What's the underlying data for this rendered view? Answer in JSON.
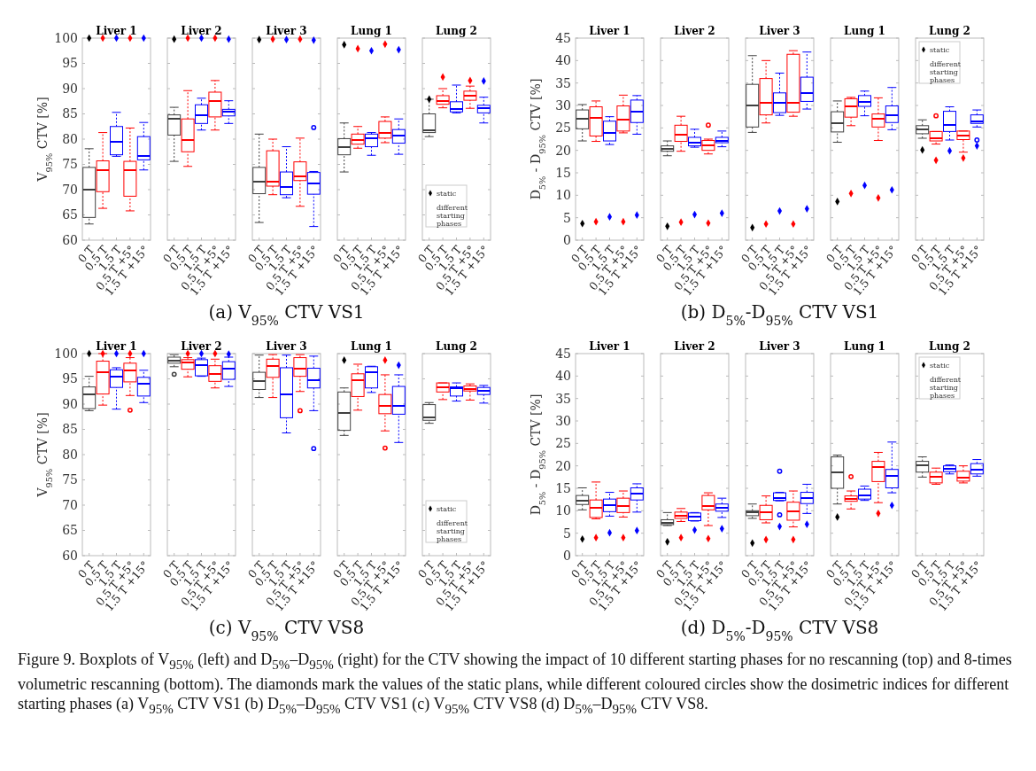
{
  "chart_data": [
    {
      "type": "box",
      "title": "Liver 1",
      "ylabel": "V$_{95%}$ CTV [%]",
      "annotations": [
        "(a) V$_{95%}$ CTV VS1"
      ],
      "categories": [
        "0 T",
        "0.5 T",
        "1.5 T",
        "0.5 T +5°",
        "1.5 T +15°"
      ],
      "ylim": [
        60,
        100
      ],
      "yticks": [
        60,
        65,
        70,
        75,
        80,
        85,
        90,
        95,
        100
      ],
      "series": [
        {
          "type": "box",
          "colors": [
            "#404040",
            "#ff0000",
            "#0000ff",
            "#ff0000",
            "#0000ff"
          ],
          "boxes": [
            {
              "low": 63.2,
              "q1": 64.5,
              "median": 70,
              "q3": 74.4,
              "high": 78.1
            },
            {
              "low": 66.3,
              "q1": 69.6,
              "median": 73.9,
              "q3": 75.7,
              "high": 81.3
            },
            {
              "low": 76.6,
              "q1": 76.9,
              "median": 79.4,
              "q3": 82.5,
              "high": 85.3
            },
            {
              "low": 65.8,
              "q1": 68.7,
              "median": 73.8,
              "q3": 75.6,
              "high": 82.2
            },
            {
              "low": 73.9,
              "q1": 75.9,
              "median": 76.7,
              "q3": 80.5,
              "high": 83.3
            }
          ]
        },
        {
          "type": "scatter",
          "marker": "diamond",
          "colors": [
            "#000000",
            "#ff0000",
            "#0000ff",
            "#ff0000",
            "#0000ff"
          ],
          "values": [
            100,
            100,
            100,
            100,
            100
          ]
        }
      ]
    },
    {
      "type": "box",
      "title": "Liver 2",
      "tick_labels": "x",
      "categories": [
        "0 T",
        "0.5 T",
        "1.5 T",
        "0.5 T +5°",
        "1.5 T +15°"
      ],
      "ylim": [
        60,
        100
      ],
      "yticks": [
        60,
        65,
        70,
        75,
        80,
        85,
        90,
        95,
        100
      ],
      "series": [
        {
          "type": "box",
          "colors": [
            "#404040",
            "#ff0000",
            "#0000ff",
            "#ff0000",
            "#0000ff"
          ],
          "boxes": [
            {
              "low": 75.6,
              "q1": 80.8,
              "median": 84,
              "q3": 84.8,
              "high": 86.3
            },
            {
              "low": 74.6,
              "q1": 77.5,
              "median": 79.8,
              "q3": 84,
              "high": 89.6
            },
            {
              "low": 81.8,
              "q1": 83.1,
              "median": 84.7,
              "q3": 86.8,
              "high": 88.1
            },
            {
              "low": 81.8,
              "q1": 84.4,
              "median": 87.5,
              "q3": 89.3,
              "high": 91.6
            },
            {
              "low": 83.1,
              "q1": 84.6,
              "median": 85.4,
              "q3": 85.9,
              "high": 87.6
            }
          ]
        },
        {
          "type": "scatter",
          "marker": "diamond",
          "colors": [
            "#000000",
            "#ff0000",
            "#0000ff",
            "#ff0000",
            "#0000ff"
          ],
          "values": [
            99.8,
            100,
            100,
            100,
            99.8
          ]
        }
      ]
    },
    {
      "type": "box",
      "title": "Liver 3",
      "tick_labels": "x",
      "categories": [
        "0 T",
        "0.5 T",
        "1.5 T",
        "0.5 T +5°",
        "1.5 T +15°"
      ],
      "ylim": [
        60,
        100
      ],
      "yticks": [
        60,
        65,
        70,
        75,
        80,
        85,
        90,
        95,
        100
      ],
      "series": [
        {
          "type": "box",
          "colors": [
            "#404040",
            "#ff0000",
            "#0000ff",
            "#ff0000",
            "#0000ff"
          ],
          "boxes": [
            {
              "low": 63.5,
              "q1": 69.2,
              "median": 71.5,
              "q3": 74.4,
              "high": 81
            },
            {
              "low": 69,
              "q1": 70.7,
              "median": 71.6,
              "q3": 77.7,
              "high": 80
            },
            {
              "low": 68.4,
              "q1": 69,
              "median": 70.5,
              "q3": 73.5,
              "high": 78.5
            },
            {
              "low": 66.7,
              "q1": 71.8,
              "median": 72.7,
              "q3": 75.5,
              "high": 80.2
            },
            {
              "low": 62.7,
              "q1": 69.1,
              "median": 71.3,
              "q3": 73.4,
              "high": 73.6,
              "outliers": [
                82.3
              ]
            }
          ]
        },
        {
          "type": "scatter",
          "marker": "diamond",
          "colors": [
            "#000000",
            "#ff0000",
            "#0000ff",
            "#ff0000",
            "#0000ff"
          ],
          "values": [
            99.7,
            99.8,
            99.7,
            99.8,
            99.6
          ]
        }
      ]
    },
    {
      "type": "box",
      "title": "Lung 1",
      "tick_labels": "x",
      "categories": [
        "0 T",
        "0.5 T",
        "1.5 T",
        "0.5 T +5°",
        "1.5 T +15°"
      ],
      "ylim": [
        60,
        100
      ],
      "yticks": [
        60,
        65,
        70,
        75,
        80,
        85,
        90,
        95,
        100
      ],
      "series": [
        {
          "type": "box",
          "colors": [
            "#404040",
            "#ff0000",
            "#0000ff",
            "#ff0000",
            "#0000ff"
          ],
          "boxes": [
            {
              "low": 73.5,
              "q1": 76.9,
              "median": 78.4,
              "q3": 80.1,
              "high": 83.2
            },
            {
              "low": 78.2,
              "q1": 79,
              "median": 79.9,
              "q3": 81,
              "high": 82.5
            },
            {
              "low": 76.8,
              "q1": 78.5,
              "median": 80.1,
              "q3": 81,
              "high": 81.3
            },
            {
              "low": 79.3,
              "q1": 80.2,
              "median": 81.2,
              "q3": 83.5,
              "high": 84.4
            },
            {
              "low": 77,
              "q1": 79.2,
              "median": 80.7,
              "q3": 81.9,
              "high": 84
            }
          ]
        },
        {
          "type": "scatter",
          "marker": "diamond",
          "colors": [
            "#000000",
            "#ff0000",
            "#0000ff",
            "#ff0000",
            "#0000ff"
          ],
          "values": [
            98.7,
            97.9,
            97.5,
            98.8,
            97.7
          ]
        }
      ]
    },
    {
      "type": "box",
      "title": "Lung 2",
      "tick_labels": "x",
      "legend": "bottom left",
      "legend_title": "different starting phases",
      "categories": [
        "0 T",
        "0.5 T",
        "1.5 T",
        "0.5 T +5°",
        "1.5 T +15°"
      ],
      "ylim": [
        60,
        100
      ],
      "yticks": [
        60,
        65,
        70,
        75,
        80,
        85,
        90,
        95,
        100
      ],
      "series": [
        {
          "type": "box",
          "colors": [
            "#404040",
            "#ff0000",
            "#0000ff",
            "#ff0000",
            "#0000ff"
          ],
          "boxes": [
            {
              "low": 80.5,
              "q1": 81.3,
              "median": 81.8,
              "q3": 85,
              "high": 87.9
            },
            {
              "low": 86.2,
              "q1": 86.9,
              "median": 87.6,
              "q3": 88.6,
              "high": 90
            },
            {
              "low": 85.2,
              "q1": 85.4,
              "median": 86,
              "q3": 87.4,
              "high": 90.7
            },
            {
              "low": 86.1,
              "q1": 87.7,
              "median": 88.6,
              "q3": 89.5,
              "high": 90.5
            },
            {
              "low": 83.2,
              "q1": 85.2,
              "median": 86.1,
              "q3": 86.7,
              "high": 88.3
            }
          ]
        },
        {
          "type": "scatter",
          "name": "static",
          "marker": "diamond",
          "color": "#000000",
          "colors": [
            "#000000",
            "#ff0000",
            null,
            "#ff0000",
            "#0000ff"
          ],
          "values": [
            87.9,
            92.3,
            null,
            91.6,
            91.5
          ]
        }
      ]
    },
    {
      "type": "box",
      "title": "Liver 1",
      "ylabel": "D$_{5%}$ - D$_{95%}$ CTV [%]",
      "annotations": [
        "(b) D$_{5%}$-D$_{95%}$ CTV VS1"
      ],
      "categories": [
        "0 T",
        "0.5 T",
        "1.5 T",
        "0.5 T +5°",
        "1.5 T +15°"
      ],
      "ylim": [
        0,
        45
      ],
      "yticks": [
        0,
        5,
        10,
        15,
        20,
        25,
        30,
        35,
        40,
        45
      ],
      "series": [
        {
          "type": "box",
          "colors": [
            "#404040",
            "#ff0000",
            "#0000ff",
            "#ff0000",
            "#0000ff"
          ],
          "boxes": [
            {
              "low": 22.1,
              "q1": 24.8,
              "median": 27,
              "q3": 29,
              "high": 30.2
            },
            {
              "low": 22,
              "q1": 23.2,
              "median": 27.2,
              "q3": 29.7,
              "high": 31
            },
            {
              "low": 21.3,
              "q1": 22.1,
              "median": 23.8,
              "q3": 26.5,
              "high": 27.5
            },
            {
              "low": 23.9,
              "q1": 24.3,
              "median": 26.8,
              "q3": 29.9,
              "high": 32.3
            },
            {
              "low": 23.6,
              "q1": 26.2,
              "median": 28.7,
              "q3": 31.2,
              "high": 32.2
            }
          ]
        },
        {
          "type": "scatter",
          "marker": "diamond",
          "colors": [
            "#000000",
            "#ff0000",
            "#0000ff",
            "#ff0000",
            "#0000ff"
          ],
          "values": [
            3.7,
            4.1,
            5.2,
            4.1,
            5.6
          ]
        }
      ]
    },
    {
      "type": "box",
      "title": "Liver 2",
      "tick_labels": "x",
      "categories": [
        "0 T",
        "0.5 T",
        "1.5 T",
        "0.5 T +5°",
        "1.5 T +15°"
      ],
      "ylim": [
        0,
        45
      ],
      "yticks": [
        0,
        5,
        10,
        15,
        20,
        25,
        30,
        35,
        40,
        45
      ],
      "series": [
        {
          "type": "box",
          "colors": [
            "#404040",
            "#ff0000",
            "#0000ff",
            "#ff0000",
            "#0000ff"
          ],
          "boxes": [
            {
              "low": 18.8,
              "q1": 19.8,
              "median": 20.4,
              "q3": 21,
              "high": 22.1
            },
            {
              "low": 19.8,
              "q1": 22,
              "median": 23.5,
              "q3": 25.6,
              "high": 27.6
            },
            {
              "low": 20.7,
              "q1": 21,
              "median": 21.7,
              "q3": 22.9,
              "high": 24.7
            },
            {
              "low": 19.2,
              "q1": 20,
              "median": 21.2,
              "q3": 22.2,
              "high": 22.5,
              "outliers": [
                25.6
              ]
            },
            {
              "low": 20.8,
              "q1": 21.7,
              "median": 22.2,
              "q3": 22.9,
              "high": 24.3
            }
          ]
        },
        {
          "type": "scatter",
          "marker": "diamond",
          "colors": [
            "#000000",
            "#ff0000",
            "#0000ff",
            "#ff0000",
            "#0000ff"
          ],
          "values": [
            3.1,
            4,
            5.7,
            3.8,
            6
          ]
        }
      ]
    },
    {
      "type": "box",
      "title": "Liver 3",
      "tick_labels": "x",
      "categories": [
        "0 T",
        "0.5 T",
        "1.5 T",
        "0.5 T +5°",
        "1.5 T +15°"
      ],
      "ylim": [
        0,
        45
      ],
      "yticks": [
        0,
        5,
        10,
        15,
        20,
        25,
        30,
        35,
        40,
        45
      ],
      "series": [
        {
          "type": "box",
          "colors": [
            "#404040",
            "#ff0000",
            "#0000ff",
            "#ff0000",
            "#0000ff"
          ],
          "boxes": [
            {
              "low": 24,
              "q1": 25.2,
              "median": 30,
              "q3": 34.7,
              "high": 41.1
            },
            {
              "low": 26.1,
              "q1": 27.9,
              "median": 30.5,
              "q3": 36,
              "high": 40
            },
            {
              "low": 27.8,
              "q1": 28.4,
              "median": 30.5,
              "q3": 32.8,
              "high": 37.2
            },
            {
              "low": 27.6,
              "q1": 28.5,
              "median": 30.5,
              "q3": 41.4,
              "high": 42.2
            },
            {
              "low": 29.2,
              "q1": 30.9,
              "median": 32.7,
              "q3": 36.3,
              "high": 41.9
            }
          ]
        },
        {
          "type": "scatter",
          "marker": "diamond",
          "colors": [
            "#000000",
            "#ff0000",
            "#0000ff",
            "#ff0000",
            "#0000ff"
          ],
          "values": [
            2.8,
            3.6,
            6.5,
            3.6,
            7
          ]
        }
      ]
    },
    {
      "type": "box",
      "title": "Lung 1",
      "tick_labels": "x",
      "categories": [
        "0 T",
        "0.5 T",
        "1.5 T",
        "0.5 T +5°",
        "1.5 T +15°"
      ],
      "ylim": [
        0,
        45
      ],
      "yticks": [
        0,
        5,
        10,
        15,
        20,
        25,
        30,
        35,
        40,
        45
      ],
      "series": [
        {
          "type": "box",
          "colors": [
            "#404040",
            "#ff0000",
            "#0000ff",
            "#ff0000",
            "#0000ff"
          ],
          "boxes": [
            {
              "low": 21.8,
              "q1": 24.1,
              "median": 26.1,
              "q3": 28.6,
              "high": 31
            },
            {
              "low": 25.5,
              "q1": 27.4,
              "median": 29.8,
              "q3": 31.5,
              "high": 31.8
            },
            {
              "low": 27.7,
              "q1": 29.8,
              "median": 30.7,
              "q3": 32.2,
              "high": 33.2
            },
            {
              "low": 22.2,
              "q1": 25.2,
              "median": 27,
              "q3": 28.1,
              "high": 31.7
            },
            {
              "low": 24.6,
              "q1": 26.2,
              "median": 27.8,
              "q3": 29.9,
              "high": 34
            }
          ]
        },
        {
          "type": "scatter",
          "marker": "diamond",
          "colors": [
            "#000000",
            "#ff0000",
            "#0000ff",
            "#ff0000",
            "#0000ff"
          ],
          "values": [
            8.6,
            10.4,
            12.2,
            9.4,
            11.2
          ]
        }
      ]
    },
    {
      "type": "box",
      "title": "Lung 2",
      "tick_labels": "x",
      "legend": "top left",
      "legend_title": "different starting phases",
      "categories": [
        "0 T",
        "0.5 T",
        "1.5 T",
        "0.5 T +5°",
        "1.5 T +15°"
      ],
      "ylim": [
        0,
        45
      ],
      "yticks": [
        0,
        5,
        10,
        15,
        20,
        25,
        30,
        35,
        40,
        45
      ],
      "series": [
        {
          "type": "box",
          "colors": [
            "#404040",
            "#ff0000",
            "#0000ff",
            "#ff0000",
            "#0000ff"
          ],
          "boxes": [
            {
              "low": 22.7,
              "q1": 23.7,
              "median": 24.6,
              "q3": 25.5,
              "high": 26.8
            },
            {
              "low": 21.4,
              "q1": 22.1,
              "median": 22.7,
              "q3": 24.2,
              "high": 24.2,
              "outliers": [
                27.7
              ]
            },
            {
              "low": 22.3,
              "q1": 24.2,
              "median": 25.6,
              "q3": 28.7,
              "high": 29.7
            },
            {
              "low": 19.6,
              "q1": 22.4,
              "median": 23.3,
              "q3": 24.3,
              "high": 24.3
            },
            {
              "low": 25.2,
              "q1": 26,
              "median": 26.4,
              "q3": 27.9,
              "high": 29,
              "outliers": [
                22.3
              ]
            }
          ]
        },
        {
          "type": "scatter",
          "name": "static",
          "marker": "diamond",
          "color": "#000000",
          "colors": [
            "#000000",
            "#ff0000",
            "#0000ff",
            "#ff0000",
            "#0000ff"
          ],
          "values": [
            20.1,
            17.8,
            19.9,
            18.3,
            21
          ]
        }
      ]
    },
    {
      "type": "box",
      "title": "Liver 1",
      "ylabel": "V$_{95%}$ CTV [%]",
      "annotations": [
        "(c) V$_{95%}$ CTV VS8"
      ],
      "categories": [
        "0 T",
        "0.5 T",
        "1.5 T",
        "0.5 T +5°",
        "1.5 T +15°"
      ],
      "ylim": [
        60,
        100
      ],
      "yticks": [
        60,
        65,
        70,
        75,
        80,
        85,
        90,
        95,
        100
      ],
      "series": [
        {
          "type": "box",
          "colors": [
            "#404040",
            "#ff0000",
            "#0000ff",
            "#ff0000",
            "#0000ff"
          ],
          "boxes": [
            {
              "low": 88.7,
              "q1": 89.1,
              "median": 91.9,
              "q3": 93.4,
              "high": 95.5
            },
            {
              "low": 89.8,
              "q1": 92,
              "median": 96.3,
              "q3": 98.5,
              "high": 100
            },
            {
              "low": 89,
              "q1": 93.3,
              "median": 95.5,
              "q3": 96.8,
              "high": 97.2
            },
            {
              "low": 91.7,
              "q1": 94.4,
              "median": 96.6,
              "q3": 98.1,
              "high": 99.2,
              "outliers": [
                88.8
              ]
            },
            {
              "low": 90.3,
              "q1": 91.6,
              "median": 94,
              "q3": 95.3,
              "high": 96.7
            }
          ]
        },
        {
          "type": "scatter",
          "marker": "diamond",
          "colors": [
            "#000000",
            "#ff0000",
            "#0000ff",
            "#ff0000",
            "#0000ff"
          ],
          "values": [
            100,
            100,
            100,
            100,
            100
          ]
        }
      ]
    },
    {
      "type": "box",
      "title": "Liver 2",
      "tick_labels": "x",
      "categories": [
        "0 T",
        "0.5 T",
        "1.5 T",
        "0.5 T +5°",
        "1.5 T +15°"
      ],
      "ylim": [
        60,
        100
      ],
      "yticks": [
        60,
        65,
        70,
        75,
        80,
        85,
        90,
        95,
        100
      ],
      "series": [
        {
          "type": "box",
          "colors": [
            "#404040",
            "#ff0000",
            "#0000ff",
            "#ff0000",
            "#0000ff"
          ],
          "boxes": [
            {
              "low": 97.4,
              "q1": 98.1,
              "median": 98.6,
              "q3": 99.3,
              "high": 99.8,
              "outliers": [
                95.9
              ]
            },
            {
              "low": 95.4,
              "q1": 96.9,
              "median": 98.3,
              "q3": 98.8,
              "high": 99.2
            },
            {
              "low": 95.5,
              "q1": 95.6,
              "median": 97.8,
              "q3": 98.8,
              "high": 99.1
            },
            {
              "low": 93.2,
              "q1": 94.5,
              "median": 96,
              "q3": 97.6,
              "high": 98.9
            },
            {
              "low": 93.5,
              "q1": 94.9,
              "median": 97,
              "q3": 98.4,
              "high": 99.3
            }
          ]
        },
        {
          "type": "scatter",
          "marker": "diamond",
          "colors": [
            null,
            "#ff0000",
            "#0000ff",
            "#ff0000",
            "#0000ff"
          ],
          "values": [
            null,
            100,
            100,
            100,
            99.9
          ]
        }
      ]
    },
    {
      "type": "box",
      "title": "Liver 3",
      "tick_labels": "x",
      "categories": [
        "0 T",
        "0.5 T",
        "1.5 T",
        "0.5 T +5°",
        "1.5 T +15°"
      ],
      "ylim": [
        60,
        100
      ],
      "yticks": [
        60,
        65,
        70,
        75,
        80,
        85,
        90,
        95,
        100
      ],
      "series": [
        {
          "type": "box",
          "colors": [
            "#404040",
            "#ff0000",
            "#0000ff",
            "#ff0000",
            "#0000ff"
          ],
          "boxes": [
            {
              "low": 91.3,
              "q1": 92.9,
              "median": 94.5,
              "q3": 96.3,
              "high": 99.7
            },
            {
              "low": 91.3,
              "q1": 95.3,
              "median": 97.5,
              "q3": 98.9,
              "high": 99.8
            },
            {
              "low": 84.3,
              "q1": 87.3,
              "median": 92,
              "q3": 97.2,
              "high": 99.7
            },
            {
              "low": 92.5,
              "q1": 95.5,
              "median": 97,
              "q3": 99.2,
              "high": 99.8,
              "outliers": [
                88.7
              ]
            },
            {
              "low": 88.7,
              "q1": 93.2,
              "median": 94.7,
              "q3": 97.1,
              "high": 99.5,
              "outliers": [
                81.2
              ]
            }
          ]
        }
      ]
    },
    {
      "type": "box",
      "title": "Lung 1",
      "tick_labels": "x",
      "categories": [
        "0 T",
        "0.5 T",
        "1.5 T",
        "0.5 T +5°",
        "1.5 T +15°"
      ],
      "ylim": [
        60,
        100
      ],
      "yticks": [
        60,
        65,
        70,
        75,
        80,
        85,
        90,
        95,
        100
      ],
      "series": [
        {
          "type": "box",
          "colors": [
            "#404040",
            "#ff0000",
            "#0000ff",
            "#ff0000",
            "#0000ff"
          ],
          "boxes": [
            {
              "low": 83.8,
              "q1": 84.8,
              "median": 88.2,
              "q3": 92.4,
              "high": 93.2
            },
            {
              "low": 88.8,
              "q1": 91.5,
              "median": 94.8,
              "q3": 96,
              "high": 97.9
            },
            {
              "low": 92.3,
              "q1": 93.2,
              "median": 96.3,
              "q3": 97.4,
              "high": 97.5
            },
            {
              "low": 84.7,
              "q1": 88.1,
              "median": 89.6,
              "q3": 91.9,
              "high": 95.8,
              "outliers": [
                81.3
              ]
            },
            {
              "low": 82.4,
              "q1": 88,
              "median": 89.6,
              "q3": 93.5,
              "high": 95.8
            }
          ]
        },
        {
          "type": "scatter",
          "marker": "diamond",
          "colors": [
            "#000000",
            null,
            null,
            "#ff0000",
            "#0000ff"
          ],
          "values": [
            98.7,
            null,
            null,
            98.7,
            97.7
          ]
        }
      ]
    },
    {
      "type": "box",
      "title": "Lung 2",
      "tick_labels": "x",
      "legend": "bottom left",
      "legend_title": "different starting phases",
      "categories": [
        "0 T",
        "0.5 T",
        "1.5 T",
        "0.5 T +5°",
        "1.5 T +15°"
      ],
      "ylim": [
        60,
        100
      ],
      "yticks": [
        60,
        65,
        70,
        75,
        80,
        85,
        90,
        95,
        100
      ],
      "series": [
        {
          "type": "box",
          "colors": [
            "#404040",
            "#ff0000",
            "#0000ff",
            "#ff0000",
            "#0000ff"
          ],
          "boxes": [
            {
              "low": 86.2,
              "q1": 86.8,
              "median": 87.3,
              "q3": 89.9,
              "high": 90.3
            },
            {
              "low": 90.9,
              "q1": 92.4,
              "median": 93.3,
              "q3": 94.2,
              "high": 94.2
            },
            {
              "low": 90.6,
              "q1": 91.6,
              "median": 93.1,
              "q3": 93.4,
              "high": 94.2
            },
            {
              "low": 90.8,
              "q1": 92.6,
              "median": 93,
              "q3": 93.6,
              "high": 94
            },
            {
              "low": 90.2,
              "q1": 91.9,
              "median": 92.7,
              "q3": 93.3,
              "high": 93.7
            }
          ]
        },
        {
          "type": "scatter",
          "name": "static",
          "marker": "diamond",
          "color": "#000000",
          "values": [
            null,
            null,
            null,
            null,
            null
          ]
        }
      ]
    },
    {
      "type": "box",
      "title": "Liver 1",
      "ylabel": "D$_{5%}$ - D$_{95%}$ CTV [%]",
      "annotations": [
        "(d) D$_{5%}$-D$_{95%}$ CTV VS8"
      ],
      "categories": [
        "0 T",
        "0.5 T",
        "1.5 T",
        "0.5 T +5°",
        "1.5 T +15°"
      ],
      "ylim": [
        0,
        45
      ],
      "yticks": [
        0,
        5,
        10,
        15,
        20,
        25,
        30,
        35,
        40,
        45
      ],
      "series": [
        {
          "type": "box",
          "colors": [
            "#404040",
            "#ff0000",
            "#0000ff",
            "#ff0000",
            "#0000ff"
          ],
          "boxes": [
            {
              "low": 10.2,
              "q1": 11.4,
              "median": 12.2,
              "q3": 13.4,
              "high": 15.1
            },
            {
              "low": 8.2,
              "q1": 8.5,
              "median": 10.6,
              "q3": 12.4,
              "high": 16.4
            },
            {
              "low": 8.8,
              "q1": 9.8,
              "median": 11.2,
              "q3": 12.6,
              "high": 14.1
            },
            {
              "low": 8.6,
              "q1": 9.6,
              "median": 11,
              "q3": 12.8,
              "high": 14.4
            },
            {
              "low": 9.7,
              "q1": 12.4,
              "median": 13.9,
              "q3": 15.1,
              "high": 16
            }
          ]
        },
        {
          "type": "scatter",
          "marker": "diamond",
          "colors": [
            "#000000",
            "#ff0000",
            "#0000ff",
            "#ff0000",
            "#0000ff"
          ],
          "values": [
            3.7,
            4,
            5.1,
            4,
            5.6
          ]
        }
      ]
    },
    {
      "type": "box",
      "title": "Liver 2",
      "tick_labels": "x",
      "categories": [
        "0 T",
        "0.5 T",
        "1.5 T",
        "0.5 T +5°",
        "1.5 T +15°"
      ],
      "ylim": [
        0,
        45
      ],
      "yticks": [
        0,
        5,
        10,
        15,
        20,
        25,
        30,
        35,
        40,
        45
      ],
      "series": [
        {
          "type": "box",
          "colors": [
            "#404040",
            "#ff0000",
            "#0000ff",
            "#ff0000",
            "#0000ff"
          ],
          "boxes": [
            {
              "low": 6.7,
              "q1": 6.9,
              "median": 7.4,
              "q3": 8,
              "high": 9.6
            },
            {
              "low": 7.6,
              "q1": 8.3,
              "median": 8.8,
              "q3": 9.7,
              "high": 10.5
            },
            {
              "low": 7.7,
              "q1": 7.8,
              "median": 8.7,
              "q3": 9.5,
              "high": 9.6
            },
            {
              "low": 6.7,
              "q1": 10.2,
              "median": 11,
              "q3": 13.4,
              "high": 14
            },
            {
              "low": 8.5,
              "q1": 9.9,
              "median": 10.7,
              "q3": 11.5,
              "high": 12.8
            }
          ]
        },
        {
          "type": "scatter",
          "marker": "diamond",
          "colors": [
            "#000000",
            "#ff0000",
            "#0000ff",
            "#ff0000",
            "#0000ff"
          ],
          "values": [
            3.1,
            4,
            5.7,
            3.8,
            6
          ]
        }
      ]
    },
    {
      "type": "box",
      "title": "Liver 3",
      "tick_labels": "x",
      "categories": [
        "0 T",
        "0.5 T",
        "1.5 T",
        "0.5 T +5°",
        "1.5 T +15°"
      ],
      "ylim": [
        0,
        45
      ],
      "yticks": [
        0,
        5,
        10,
        15,
        20,
        25,
        30,
        35,
        40,
        45
      ],
      "series": [
        {
          "type": "box",
          "colors": [
            "#404040",
            "#ff0000",
            "#0000ff",
            "#ff0000",
            "#0000ff"
          ],
          "boxes": [
            {
              "low": 8.3,
              "q1": 8.9,
              "median": 9.6,
              "q3": 10,
              "high": 11.5
            },
            {
              "low": 7.3,
              "q1": 8,
              "median": 9.6,
              "q3": 11.2,
              "high": 13.3
            },
            {
              "low": 12.2,
              "q1": 12.3,
              "median": 12.9,
              "q3": 14,
              "high": 14.1,
              "outliers": [
                18.8,
                9.1
              ]
            },
            {
              "low": 6.4,
              "q1": 7.9,
              "median": 9.8,
              "q3": 11.9,
              "high": 14.4
            },
            {
              "low": 9.4,
              "q1": 11.6,
              "median": 12.8,
              "q3": 14.1,
              "high": 15.9
            }
          ]
        },
        {
          "type": "scatter",
          "marker": "diamond",
          "colors": [
            "#000000",
            "#ff0000",
            "#0000ff",
            "#ff0000",
            "#0000ff"
          ],
          "values": [
            2.8,
            3.6,
            6.5,
            3.6,
            7
          ]
        }
      ]
    },
    {
      "type": "box",
      "title": "Lung 1",
      "tick_labels": "x",
      "categories": [
        "0 T",
        "0.5 T",
        "1.5 T",
        "0.5 T +5°",
        "1.5 T +15°"
      ],
      "ylim": [
        0,
        45
      ],
      "yticks": [
        0,
        5,
        10,
        15,
        20,
        25,
        30,
        35,
        40,
        45
      ],
      "series": [
        {
          "type": "box",
          "colors": [
            "#404040",
            "#ff0000",
            "#0000ff",
            "#ff0000",
            "#0000ff"
          ],
          "boxes": [
            {
              "low": 11.5,
              "q1": 15,
              "median": 18.6,
              "q3": 22,
              "high": 22.4
            },
            {
              "low": 10.4,
              "q1": 12.1,
              "median": 12.6,
              "q3": 13.3,
              "high": 14.4,
              "outliers": [
                17.6
              ]
            },
            {
              "low": 12.3,
              "q1": 12.6,
              "median": 13.4,
              "q3": 14.8,
              "high": 15.5
            },
            {
              "low": 11.8,
              "q1": 16.5,
              "median": 19.7,
              "q3": 21,
              "high": 23
            },
            {
              "low": 14,
              "q1": 15.1,
              "median": 17.7,
              "q3": 19.2,
              "high": 25.3
            }
          ]
        },
        {
          "type": "scatter",
          "marker": "diamond",
          "colors": [
            "#000000",
            null,
            null,
            "#ff0000",
            "#0000ff"
          ],
          "values": [
            8.6,
            null,
            null,
            9.4,
            11.2
          ]
        }
      ]
    },
    {
      "type": "box",
      "title": "Lung 2",
      "tick_labels": "x",
      "legend": "top left",
      "legend_title": "different starting phases",
      "annotations": [
        "Figure 9. Boxplots of V$_{95%}$ (left) and D$_{5%}$–D$_{95%}$ (right) for the CTV showing the impact of 10 different starting phases for no rescanning (top) and 8-times volumetric rescanning (bottom). The diamonds mark the values of the static plans, while different coloured circles show the dosimetric indices for different starting phases (a) V$_{95%}$ CTV VS1 (b) D$_{5%}$–D$_{95%}$ CTV VS1 (c) V$_{95%}$ CTV VS8 (d) D$_{5%}$–D$_{95%}$ CTV VS8."
      ],
      "categories": [
        "0 T",
        "0.5 T",
        "1.5 T",
        "0.5 T +5°",
        "1.5 T +15°"
      ],
      "ylim": [
        0,
        45
      ],
      "yticks": [
        0,
        5,
        10,
        15,
        20,
        25,
        30,
        35,
        40,
        45
      ],
      "series": [
        {
          "type": "box",
          "colors": [
            "#404040",
            "#ff0000",
            "#0000ff",
            "#ff0000",
            "#0000ff"
          ],
          "boxes": [
            {
              "low": 17.5,
              "q1": 18.6,
              "median": 20.1,
              "q3": 21,
              "high": 22
            },
            {
              "low": 15.9,
              "q1": 16.2,
              "median": 17.6,
              "q3": 18.6,
              "high": 19.5
            },
            {
              "low": 18.2,
              "q1": 18.7,
              "median": 19.4,
              "q3": 20,
              "high": 20.2
            },
            {
              "low": 16.2,
              "q1": 16.6,
              "median": 17.3,
              "q3": 18.8,
              "high": 20
            },
            {
              "low": 17.7,
              "q1": 18.2,
              "median": 19.1,
              "q3": 20.5,
              "high": 21.4
            }
          ]
        },
        {
          "type": "scatter",
          "name": "static",
          "marker": "diamond",
          "color": "#000000",
          "values": [
            null,
            null,
            null,
            null,
            null
          ]
        }
      ]
    }
  ]
}
